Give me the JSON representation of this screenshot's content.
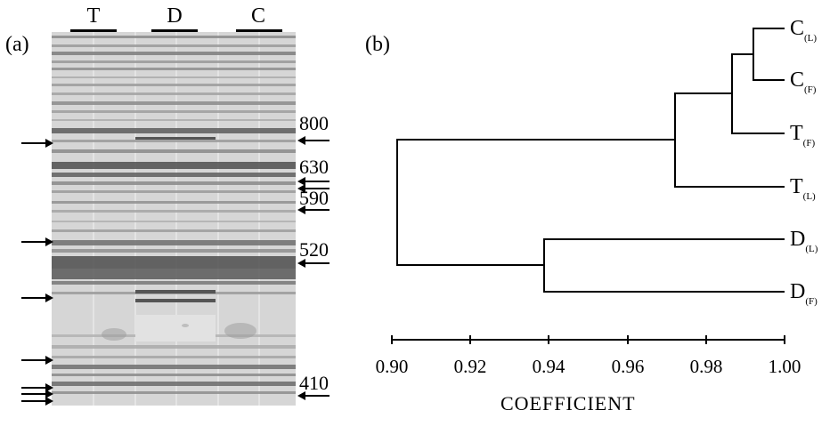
{
  "figure": {
    "panel_a_label": "(a)",
    "panel_b_label": "(b)",
    "gel": {
      "lanes": [
        "T",
        "D",
        "C"
      ],
      "size_markers": [
        "800",
        "630",
        "590",
        "520",
        "410"
      ],
      "left_arrow_count": 7,
      "right_arrow_count": 6
    },
    "dendrogram": {
      "leaves": [
        {
          "name": "C",
          "sub": "(L)"
        },
        {
          "name": "C",
          "sub": "(F)"
        },
        {
          "name": "T",
          "sub": "(F)"
        },
        {
          "name": "T",
          "sub": "(L)"
        },
        {
          "name": "D",
          "sub": "(L)"
        },
        {
          "name": "D",
          "sub": "(F)"
        }
      ],
      "merges": [
        {
          "pair": "C(L)-C(F)",
          "coefficient": 0.99
        },
        {
          "pair": "C-T(F)",
          "coefficient": 0.985
        },
        {
          "pair": "C/T(F)-T(L)",
          "coefficient": 0.971
        },
        {
          "pair": "D(L)-D(F)",
          "coefficient": 0.938
        },
        {
          "pair": "all",
          "coefficient": 0.902
        }
      ],
      "axis": {
        "ticks": [
          "0.90",
          "0.92",
          "0.94",
          "0.96",
          "0.98",
          "1.00"
        ],
        "range": [
          0.9,
          1.0
        ],
        "title": "COEFFICIENT"
      }
    }
  }
}
